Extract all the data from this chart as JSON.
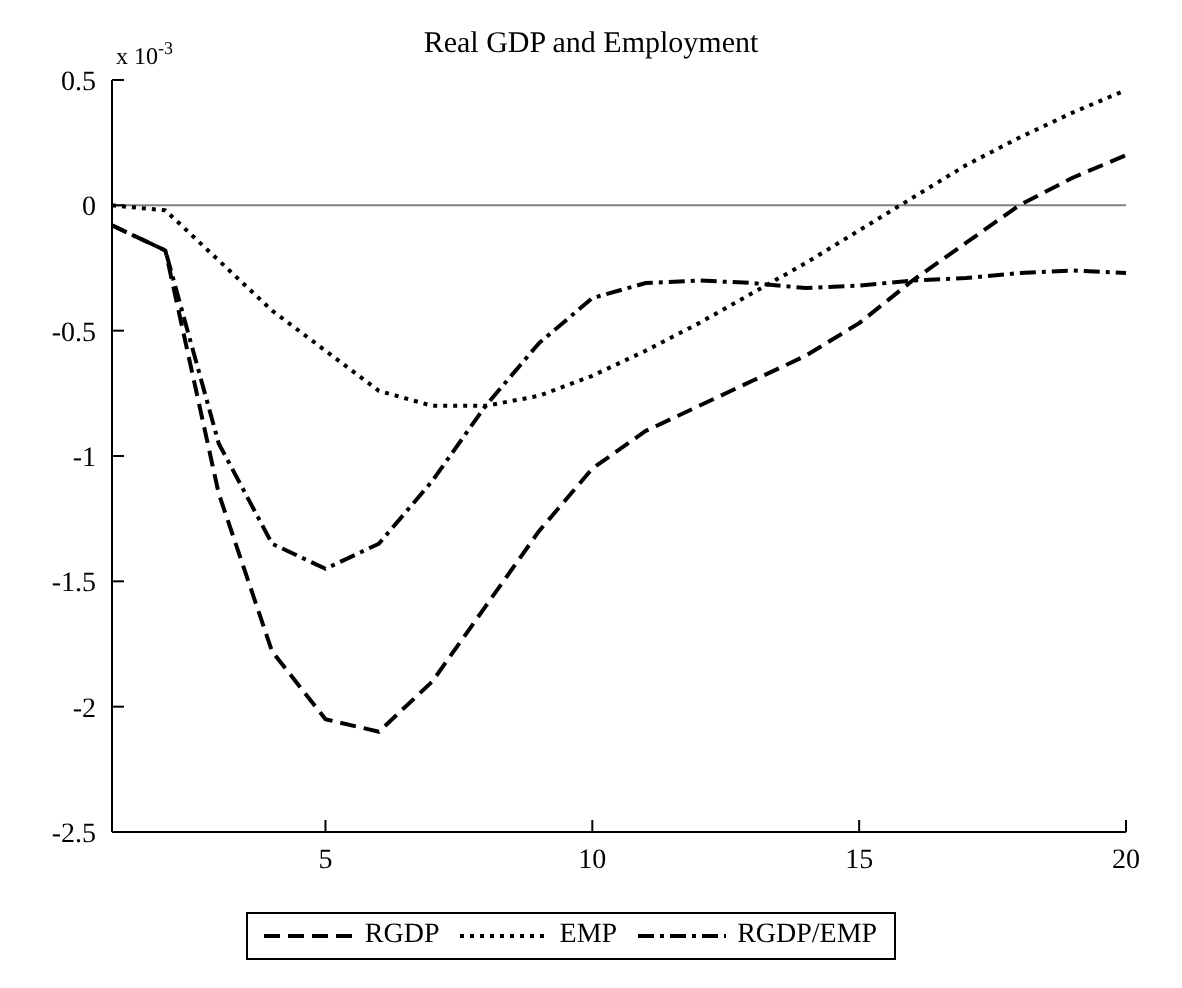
{
  "chart_data": {
    "type": "line",
    "title": "Real GDP and Employment",
    "annotations": [
      "x 10$^{-3}$"
    ],
    "x": [
      1,
      2,
      3,
      4,
      5,
      6,
      7,
      8,
      9,
      10,
      11,
      12,
      13,
      14,
      15,
      16,
      17,
      18,
      19,
      20
    ],
    "series": [
      {
        "name": "RGDP",
        "color": "#000000",
        "line_style": "dashed",
        "values": [
          -0.08,
          -0.18,
          -1.15,
          -1.78,
          -2.05,
          -2.1,
          -1.9,
          -1.6,
          -1.3,
          -1.05,
          -0.9,
          -0.8,
          -0.7,
          -0.6,
          -0.47,
          -0.3,
          -0.15,
          0.0,
          0.11,
          0.2
        ]
      },
      {
        "name": "EMP",
        "color": "#000000",
        "line_style": "dotted",
        "values": [
          0,
          -0.02,
          -0.22,
          -0.42,
          -0.58,
          -0.74,
          -0.8,
          -0.8,
          -0.76,
          -0.68,
          -0.58,
          -0.47,
          -0.35,
          -0.23,
          -0.1,
          0.03,
          0.16,
          0.27,
          0.37,
          0.46
        ]
      },
      {
        "name": "RGDP/EMP",
        "color": "#000000",
        "line_style": "dashdot",
        "values": [
          -0.08,
          -0.18,
          -0.95,
          -1.35,
          -1.45,
          -1.35,
          -1.1,
          -0.8,
          -0.55,
          -0.37,
          -0.31,
          -0.3,
          -0.31,
          -0.33,
          -0.32,
          -0.3,
          -0.29,
          -0.27,
          -0.26,
          -0.27
        ]
      }
    ],
    "xlim": [
      1,
      20
    ],
    "xticks": [
      5,
      10,
      15,
      20
    ],
    "ylim": [
      -2.5,
      0.5
    ],
    "yticks": [
      -2.5,
      -2,
      -1.5,
      -1,
      -0.5,
      0,
      0.5
    ],
    "ref_lines": [
      {
        "axis": "y",
        "value": 0,
        "color": "#808080"
      }
    ],
    "grid": false,
    "legend": "bottom",
    "marker": "none"
  }
}
